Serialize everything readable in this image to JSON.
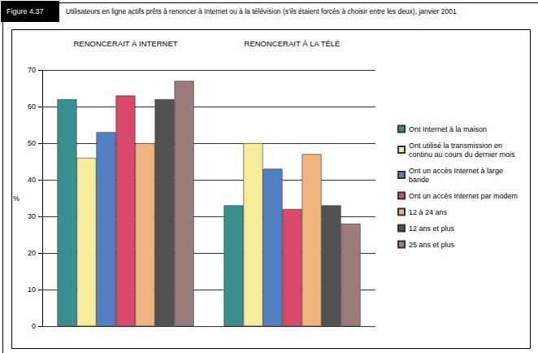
{
  "chart_data": {
    "type": "bar",
    "figure": "Figure 4.37",
    "title": "Utilisateurs en ligne actifs prêts à renoncer à Internet ou à la télévision (s'ils étaient forcés à choisir entre les deux), janvier 2001",
    "y_label": "%",
    "categories": [
      "RENONCERAIT À INTERNET",
      "RENONCERAIT À LA TÉLÉ"
    ],
    "series": [
      {
        "name": "Ont Internet à la maison",
        "color": "#3a8f8f",
        "values": [
          62,
          33
        ]
      },
      {
        "name": "Ont utilisé la transmission en continu au cours du dernier mois",
        "color": "#f7ec9c",
        "values": [
          46,
          50
        ]
      },
      {
        "name": "Ont un accès Internet à large bande",
        "color": "#5280c2",
        "values": [
          53,
          43
        ]
      },
      {
        "name": "Ont un accès Internet par modem",
        "color": "#d9496b",
        "values": [
          63,
          32
        ]
      },
      {
        "name": "12 à 24 ans",
        "color": "#f2b47e",
        "values": [
          50,
          47
        ]
      },
      {
        "name": "12 ans et plus",
        "color": "#525252",
        "values": [
          62,
          33
        ]
      },
      {
        "name": "25 ans et plus",
        "color": "#9c7b7b",
        "values": [
          67,
          28
        ]
      }
    ],
    "ylim": [
      0,
      70
    ],
    "yticks": [
      0,
      10,
      20,
      30,
      40,
      50,
      60,
      70
    ],
    "grid": true,
    "legend": "right"
  }
}
